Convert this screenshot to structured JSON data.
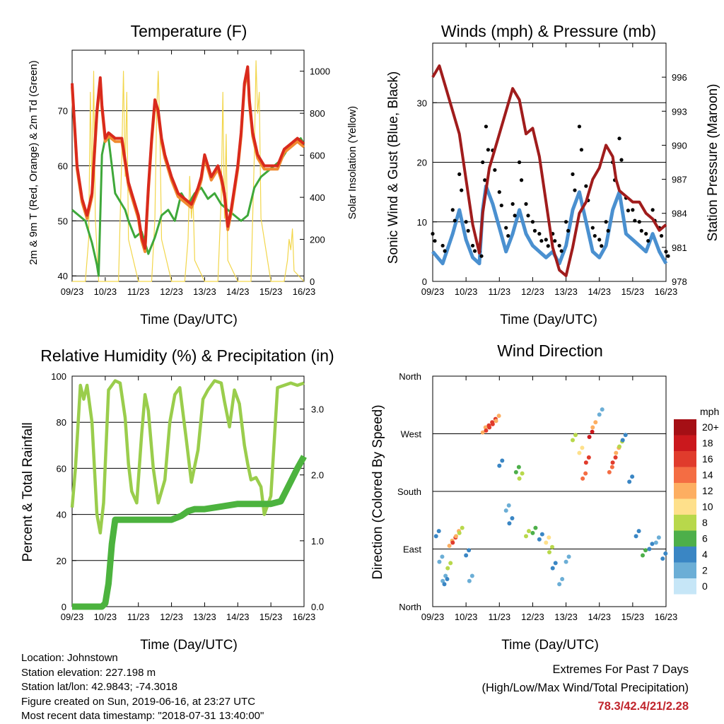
{
  "x_ticks": [
    "09/23",
    "10/23",
    "11/23",
    "12/23",
    "13/23",
    "14/23",
    "15/23",
    "16/23"
  ],
  "time_label": "Time (Day/UTC)",
  "chart_data": [
    {
      "type": "line",
      "title": "Temperature (F)",
      "xlabel": "Time (Day/UTC)",
      "ylabel": "2m & 9m T (Red, Orange) & 2m Td (Green)",
      "ylabel_right": "Solar Insolation (Yellow)",
      "x_unit": "days since 09/23",
      "xlim": [
        0,
        7
      ],
      "ylim": [
        39,
        81
      ],
      "ylim_right": [
        0,
        1100
      ],
      "y_ticks": [
        40,
        50,
        60,
        70
      ],
      "y_ticks_right": [
        0,
        200,
        400,
        600,
        800,
        1000
      ],
      "colors": {
        "temp2m": "#d92a1c",
        "temp9m": "#f08a30",
        "dew": "#3ea83a",
        "solar": "#f2d64b"
      },
      "series": [
        {
          "name": "2m T",
          "x": [
            0,
            0.05,
            0.15,
            0.3,
            0.45,
            0.6,
            0.75,
            0.85,
            0.9,
            1.0,
            1.1,
            1.3,
            1.5,
            1.6,
            1.7,
            1.8,
            1.9,
            2.0,
            2.1,
            2.2,
            2.3,
            2.4,
            2.5,
            2.6,
            2.7,
            2.8,
            2.9,
            3.0,
            3.2,
            3.4,
            3.6,
            3.8,
            3.9,
            4.0,
            4.1,
            4.2,
            4.4,
            4.5,
            4.6,
            4.7,
            4.8,
            5.0,
            5.1,
            5.2,
            5.3,
            5.35,
            5.45,
            5.6,
            5.8,
            6.0,
            6.2,
            6.4,
            6.6,
            6.8,
            7.0
          ],
          "y": [
            75,
            70,
            60,
            54,
            51,
            55,
            70,
            76,
            71,
            65,
            66,
            65,
            65,
            61,
            57,
            55,
            53,
            51,
            47,
            45,
            56,
            65,
            72,
            70,
            65,
            62,
            60,
            58,
            55,
            54,
            53,
            56,
            58,
            62,
            60,
            58,
            60,
            58,
            55,
            49,
            52,
            60,
            66,
            75,
            78,
            72,
            66,
            62,
            60,
            60,
            60,
            63,
            64,
            65,
            64
          ]
        },
        {
          "name": "Dew point",
          "x": [
            0,
            0.2,
            0.4,
            0.6,
            0.75,
            0.8,
            0.9,
            1.0,
            1.1,
            1.2,
            1.3,
            1.4,
            1.5,
            1.6,
            1.7,
            1.9,
            2.1,
            2.3,
            2.5,
            2.7,
            2.9,
            3.1,
            3.3,
            3.5,
            3.7,
            3.9,
            4.1,
            4.3,
            4.5,
            4.7,
            4.9,
            5.1,
            5.3,
            5.5,
            5.7,
            5.9,
            6.1,
            6.3,
            6.5,
            6.7,
            6.9,
            7.0
          ],
          "y": [
            52,
            51,
            50,
            46,
            42,
            40,
            62,
            65,
            65,
            60,
            55,
            54,
            53,
            52,
            50,
            47,
            48,
            44,
            47,
            51,
            52,
            50,
            55,
            53,
            55,
            56,
            54,
            55,
            53,
            52,
            51,
            50,
            51,
            56,
            58,
            59,
            60,
            61,
            63,
            64,
            65,
            64
          ]
        },
        {
          "name": "Solar",
          "x": [
            0,
            0.4,
            0.5,
            0.55,
            0.6,
            0.65,
            0.7,
            0.8,
            1.0,
            1.4,
            1.5,
            1.55,
            1.6,
            1.65,
            1.7,
            2.0,
            2.4,
            2.5,
            2.55,
            2.6,
            2.65,
            2.7,
            3.0,
            3.4,
            3.5,
            3.55,
            3.6,
            3.65,
            3.7,
            4.0,
            4.4,
            4.5,
            4.55,
            4.6,
            4.65,
            4.7,
            5.0,
            5.4,
            5.5,
            5.55,
            5.6,
            5.65,
            5.7,
            6.0,
            6.4,
            6.5,
            6.55,
            6.6,
            6.65,
            6.7,
            7.0
          ],
          "y": [
            0,
            0,
            200,
            900,
            400,
            1000,
            300,
            0,
            0,
            0,
            600,
            1000,
            500,
            900,
            200,
            0,
            0,
            300,
            800,
            1000,
            700,
            200,
            0,
            0,
            200,
            500,
            300,
            400,
            100,
            0,
            0,
            400,
            900,
            300,
            700,
            100,
            0,
            0,
            600,
            1050,
            800,
            900,
            300,
            0,
            0,
            100,
            200,
            150,
            250,
            50,
            0
          ]
        }
      ]
    },
    {
      "type": "scatter",
      "title": "Winds (mph) & Pressure (mb)",
      "xlabel": "Time (Day/UTC)",
      "ylabel": "Sonic Wind & Gust (Blue, Black)",
      "ylabel_right": "Station Pressure (Maroon)",
      "x_unit": "days since 09/23",
      "xlim": [
        0,
        7
      ],
      "ylim": [
        0,
        40
      ],
      "ylim_right": [
        978,
        999
      ],
      "y_ticks": [
        0,
        10,
        20,
        30
      ],
      "y_ticks_right": [
        978,
        981,
        984,
        987,
        990,
        993,
        996
      ],
      "colors": {
        "wind": "#4a90d0",
        "gust": "#000000",
        "pressure": "#a01c1c"
      },
      "series": [
        {
          "name": "Wind",
          "x": [
            0,
            0.3,
            0.6,
            0.8,
            1.0,
            1.2,
            1.4,
            1.5,
            1.6,
            1.8,
            2.0,
            2.2,
            2.4,
            2.6,
            2.8,
            3.0,
            3.2,
            3.4,
            3.6,
            3.8,
            4.0,
            4.2,
            4.4,
            4.6,
            4.8,
            5.0,
            5.2,
            5.4,
            5.6,
            5.8,
            6.0,
            6.2,
            6.4,
            6.6,
            6.8,
            7.0
          ],
          "y": [
            5,
            3,
            8,
            12,
            7,
            4,
            3,
            12,
            16,
            13,
            9,
            5,
            8,
            12,
            8,
            6,
            5,
            4,
            5,
            3,
            6,
            12,
            15,
            10,
            5,
            4,
            6,
            12,
            15,
            8,
            7,
            6,
            5,
            8,
            5,
            3
          ]
        },
        {
          "name": "Gust",
          "x": [
            0,
            0.3,
            0.6,
            0.8,
            1.0,
            1.2,
            1.4,
            1.5,
            1.6,
            1.8,
            2.0,
            2.2,
            2.4,
            2.6,
            2.8,
            3.0,
            3.2,
            3.4,
            3.6,
            3.8,
            4.0,
            4.2,
            4.4,
            4.6,
            4.8,
            5.0,
            5.2,
            5.4,
            5.6,
            5.8,
            6.0,
            6.2,
            6.4,
            6.6,
            6.8,
            7.0
          ],
          "y": [
            8,
            6,
            12,
            18,
            10,
            6,
            5,
            20,
            26,
            22,
            15,
            9,
            13,
            20,
            13,
            10,
            8,
            7,
            8,
            6,
            10,
            18,
            26,
            16,
            9,
            7,
            10,
            20,
            24,
            14,
            12,
            10,
            8,
            12,
            9,
            5
          ]
        },
        {
          "name": "Pressure",
          "x": [
            0,
            0.2,
            0.4,
            0.6,
            0.8,
            1.0,
            1.2,
            1.4,
            1.5,
            1.6,
            1.7,
            1.8,
            2.0,
            2.2,
            2.4,
            2.6,
            2.8,
            3.0,
            3.2,
            3.4,
            3.6,
            3.8,
            4.0,
            4.2,
            4.4,
            4.6,
            4.8,
            5.0,
            5.2,
            5.4,
            5.5,
            5.6,
            5.8,
            6.0,
            6.2,
            6.4,
            6.6,
            6.8,
            7.0
          ],
          "y": [
            996,
            997,
            995,
            993,
            991,
            987,
            983,
            980.5,
            984,
            986,
            988,
            989,
            991,
            993,
            995,
            994,
            991,
            991.5,
            989,
            985,
            981,
            979,
            978.5,
            981,
            984,
            985,
            987,
            988,
            990,
            989,
            987,
            986,
            985.5,
            985,
            985,
            984,
            983.5,
            982.5,
            983
          ]
        }
      ]
    },
    {
      "type": "line",
      "title": "Relative Humidity (%) & Precipitation (in)",
      "xlabel": "Time (Day/UTC)",
      "ylabel": "Percent & Total Rainfall",
      "x_unit": "days since 09/23",
      "xlim": [
        0,
        7
      ],
      "ylim": [
        0,
        100
      ],
      "ylim_right": [
        0,
        3.5
      ],
      "y_ticks": [
        0,
        20,
        40,
        60,
        80,
        100
      ],
      "y_ticks_right": [
        "0.0",
        "1.0",
        "2.0",
        "3.0"
      ],
      "colors": {
        "rh": "#9acd4c",
        "rain": "#4cb33e"
      },
      "series": [
        {
          "name": "RH",
          "x": [
            0,
            0.1,
            0.25,
            0.35,
            0.45,
            0.6,
            0.75,
            0.85,
            0.95,
            1.1,
            1.3,
            1.45,
            1.6,
            1.7,
            1.8,
            1.95,
            2.1,
            2.2,
            2.3,
            2.45,
            2.6,
            2.8,
            2.95,
            3.1,
            3.25,
            3.45,
            3.6,
            3.8,
            3.95,
            4.1,
            4.3,
            4.5,
            4.6,
            4.75,
            4.9,
            5.05,
            5.2,
            5.3,
            5.4,
            5.55,
            5.7,
            5.8,
            5.9,
            6.0,
            6.2,
            6.4,
            6.6,
            6.8,
            7.0
          ],
          "y": [
            43,
            60,
            96,
            90,
            96,
            80,
            40,
            32,
            45,
            94,
            98,
            97,
            82,
            62,
            50,
            45,
            75,
            92,
            85,
            60,
            45,
            55,
            80,
            92,
            95,
            72,
            54,
            68,
            90,
            94,
            98,
            97,
            89,
            78,
            94,
            88,
            70,
            62,
            55,
            56,
            52,
            40,
            44,
            48,
            95,
            96,
            97,
            96,
            97
          ]
        },
        {
          "name": "Precipitation",
          "x": [
            0,
            0.9,
            1.0,
            1.1,
            1.2,
            1.3,
            2.0,
            3.0,
            3.3,
            3.5,
            3.7,
            4.0,
            4.5,
            5.0,
            5.5,
            5.8,
            6.0,
            6.3,
            6.6,
            6.8,
            7.0
          ],
          "y": [
            0,
            0,
            0.05,
            0.35,
            0.95,
            1.32,
            1.32,
            1.32,
            1.38,
            1.45,
            1.48,
            1.48,
            1.52,
            1.56,
            1.56,
            1.56,
            1.56,
            1.6,
            1.9,
            2.1,
            2.28
          ]
        }
      ]
    },
    {
      "type": "scatter",
      "title": "Wind Direction",
      "xlabel": "Time (Day/UTC)",
      "ylabel": "Direction (Colored By Speed)",
      "x_unit": "days since 09/23",
      "xlim": [
        0,
        7
      ],
      "y_categories": [
        "North",
        "East",
        "South",
        "West",
        "North"
      ],
      "y_unit": "degrees from North",
      "ylim": [
        0,
        360
      ],
      "legend_title": "mph",
      "legend_labels": [
        "20+",
        "18",
        "16",
        "14",
        "12",
        "10",
        "8",
        "6",
        "4",
        "2",
        "0"
      ],
      "legend_colors": [
        "#a50f15",
        "#cb181d",
        "#e03b2c",
        "#f46d43",
        "#fdae61",
        "#fee08b",
        "#b8d84b",
        "#4daf4a",
        "#3a86c4",
        "#6baed6",
        "#c6e6f7"
      ],
      "points": {
        "x": [
          0.1,
          0.2,
          0.3,
          0.35,
          0.45,
          0.5,
          0.6,
          0.7,
          0.8,
          1.0,
          1.1,
          1.5,
          1.6,
          1.7,
          1.8,
          1.9,
          2.0,
          2.2,
          2.3,
          2.5,
          2.6,
          2.8,
          3.0,
          3.2,
          3.4,
          3.5,
          3.6,
          3.8,
          4.0,
          4.2,
          4.4,
          4.5,
          4.6,
          4.7,
          4.8,
          5.0,
          5.3,
          5.4,
          5.5,
          5.6,
          5.7,
          5.9,
          6.1,
          6.3,
          6.5,
          6.7,
          6.9
        ],
        "y": [
          110,
          70,
          40,
          35,
          60,
          95,
          100,
          110,
          115,
          80,
          40,
          272,
          275,
          280,
          285,
          290,
          220,
          150,
          130,
          210,
          200,
          110,
          115,
          105,
          100,
          85,
          60,
          35,
          70,
          260,
          240,
          200,
          225,
          265,
          280,
          300,
          210,
          225,
          240,
          250,
          260,
          195,
          110,
          80,
          90,
          100,
          75
        ],
        "speed": [
          4,
          2,
          3,
          4,
          8,
          12,
          16,
          12,
          8,
          4,
          2,
          12,
          16,
          16,
          16,
          12,
          4,
          2,
          4,
          6,
          8,
          8,
          6,
          4,
          10,
          8,
          4,
          2,
          2,
          8,
          10,
          14,
          16,
          18,
          12,
          2,
          14,
          16,
          12,
          8,
          4,
          4,
          4,
          6,
          4,
          2,
          4
        ]
      }
    }
  ],
  "info": {
    "location": "Location: Johnstown",
    "elevation": "Station elevation: 227.198 m",
    "latlon": "Station lat/lon: 42.9843; -74.3018",
    "created": "Figure created on Sun, 2019-06-16, at 23:27 UTC",
    "recent": "Most recent data timestamp: \"2018-07-31 13:40:00\""
  },
  "extremes": {
    "title": "Extremes For Past 7 Days",
    "subtitle": "(High/Low/Max Wind/Total Precipitation)",
    "values": "78.3/42.4/21/2.28"
  }
}
